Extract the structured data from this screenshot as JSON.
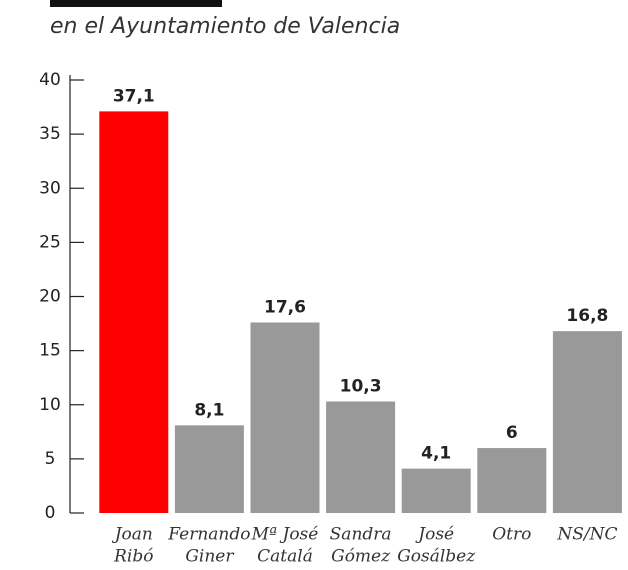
{
  "chart_data": {
    "type": "bar",
    "subtitle": "en el Ayuntamiento de Valencia",
    "categories": [
      [
        "Joan",
        "Ribó"
      ],
      [
        "Fernando",
        "Giner"
      ],
      [
        "Mª José",
        "Catalá"
      ],
      [
        "Sandra",
        "Gómez"
      ],
      [
        "José",
        "Gosálbez"
      ],
      [
        "Otro"
      ],
      [
        "NS/NC"
      ]
    ],
    "values": [
      37.1,
      8.1,
      17.6,
      10.3,
      4.1,
      6,
      16.8
    ],
    "value_labels": [
      "37,1",
      "8,1",
      "17,6",
      "10,3",
      "4,1",
      "6",
      "16,8"
    ],
    "colors": [
      "#ff0000",
      "#999999",
      "#999999",
      "#999999",
      "#999999",
      "#999999",
      "#999999"
    ],
    "ylim": [
      0,
      40
    ],
    "yticks": [
      0,
      5,
      10,
      15,
      20,
      25,
      30,
      35,
      40
    ],
    "grid": false
  }
}
